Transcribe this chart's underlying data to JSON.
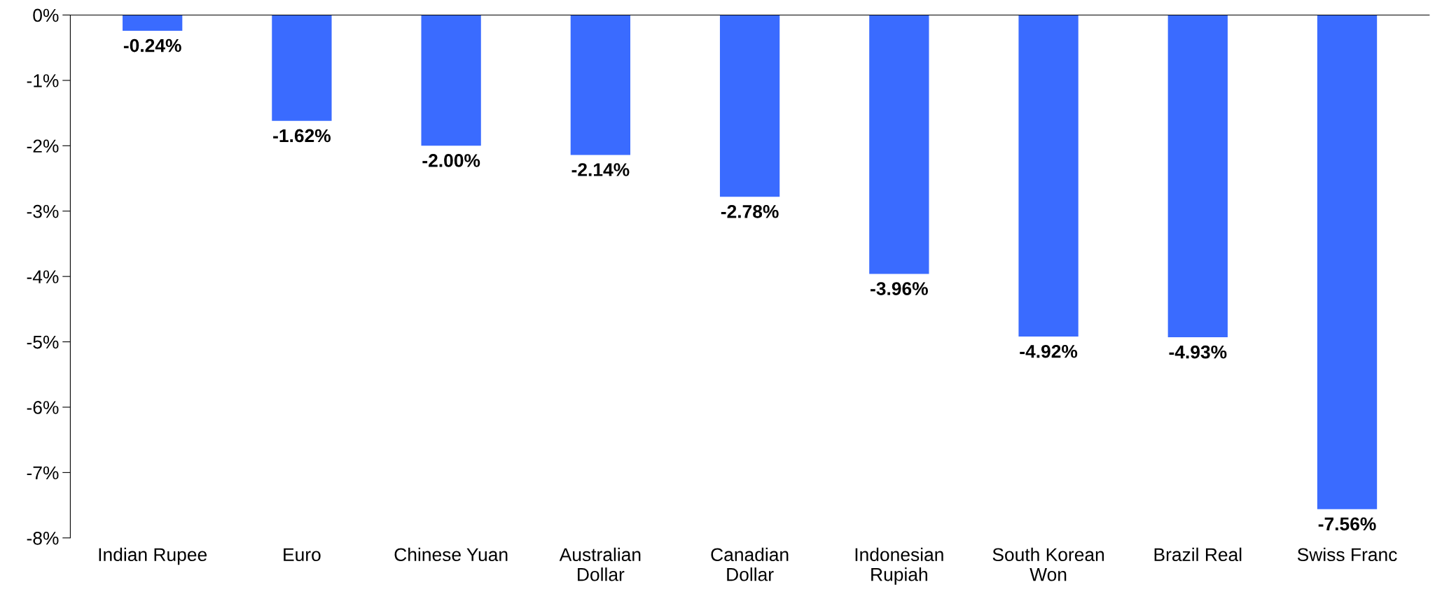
{
  "chart_data": {
    "type": "bar",
    "categories": [
      "Indian Rupee",
      "Euro",
      "Chinese Yuan",
      "Australian\nDollar",
      "Canadian\nDollar",
      "Indonesian\nRupiah",
      "South Korean\nWon",
      "Brazil Real",
      "Swiss Franc"
    ],
    "values": [
      -0.24,
      -1.62,
      -2.0,
      -2.14,
      -2.78,
      -3.96,
      -4.92,
      -4.93,
      -7.56
    ],
    "value_labels": [
      "-0.24%",
      "-1.62%",
      "-2.00%",
      "-2.14%",
      "-2.78%",
      "-3.96%",
      "-4.92%",
      "-4.93%",
      "-7.56%"
    ],
    "color": "#3a6bff",
    "ylim": [
      -8,
      0
    ],
    "yticks": [
      {
        "value": 0,
        "label": "0%"
      },
      {
        "value": -1,
        "label": "-1%"
      },
      {
        "value": -2,
        "label": "-2%"
      },
      {
        "value": -3,
        "label": "-3%"
      },
      {
        "value": -4,
        "label": "-4%"
      },
      {
        "value": -5,
        "label": "-5%"
      },
      {
        "value": -6,
        "label": "-6%"
      },
      {
        "value": -7,
        "label": "-7%"
      },
      {
        "value": -8,
        "label": "-8%"
      }
    ],
    "grid": false,
    "legend": false
  }
}
